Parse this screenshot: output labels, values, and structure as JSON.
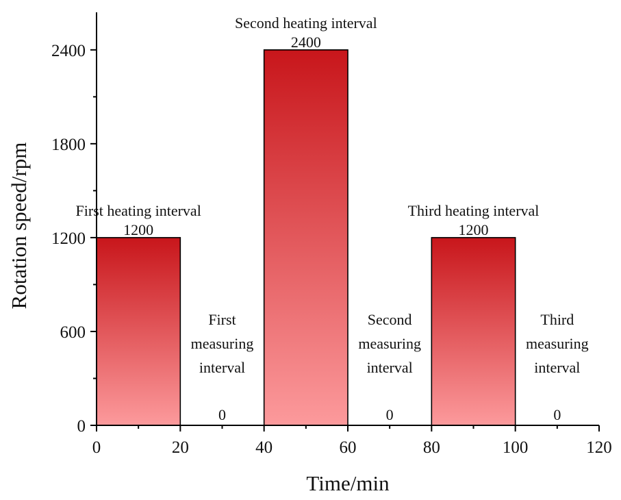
{
  "chart_data": {
    "type": "bar",
    "title": "",
    "xlabel": "Time/min",
    "ylabel": "Rotation speed/rpm",
    "xlim": [
      0,
      120
    ],
    "ylim": [
      0,
      2640
    ],
    "x_ticks": [
      0,
      20,
      40,
      60,
      80,
      100,
      120
    ],
    "y_ticks": [
      0,
      600,
      1200,
      1800,
      2400
    ],
    "grid": false,
    "legend": "none",
    "gradient_colors": {
      "top": "#c8161b",
      "bottom": "#fc9a9c"
    },
    "intervals": [
      {
        "start": 0,
        "end": 20,
        "value": 1200,
        "label_lines": [
          "First heating interval"
        ],
        "value_label": "1200"
      },
      {
        "start": 20,
        "end": 40,
        "value": 0,
        "label_lines": [
          "First",
          "measuring",
          "interval"
        ],
        "value_label": "0"
      },
      {
        "start": 40,
        "end": 60,
        "value": 2400,
        "label_lines": [
          "Second heating interval"
        ],
        "value_label": "2400"
      },
      {
        "start": 60,
        "end": 80,
        "value": 0,
        "label_lines": [
          "Second",
          "measuring",
          "interval"
        ],
        "value_label": "0"
      },
      {
        "start": 80,
        "end": 100,
        "value": 1200,
        "label_lines": [
          "Third heating interval"
        ],
        "value_label": "1200"
      },
      {
        "start": 100,
        "end": 120,
        "value": 0,
        "label_lines": [
          "Third",
          "measuring",
          "interval"
        ],
        "value_label": "0"
      }
    ]
  }
}
